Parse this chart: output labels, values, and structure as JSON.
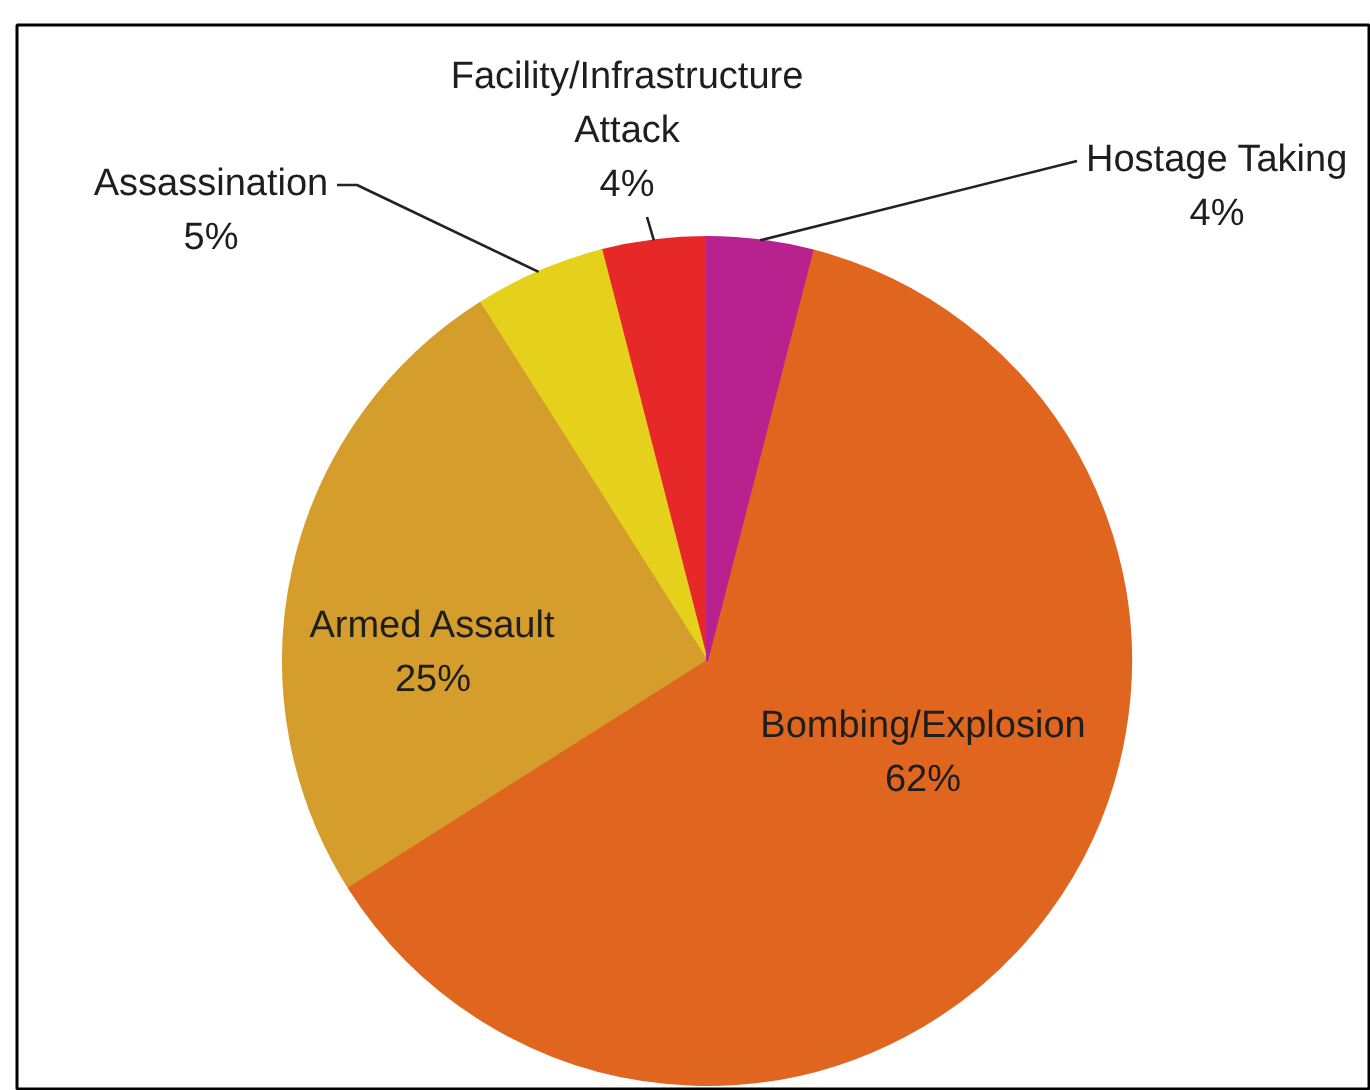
{
  "chart_data": {
    "type": "pie",
    "categories": [
      "Facility/Infrastructure Attack",
      "Assassination",
      "Armed Assault",
      "Bombing/Explosion",
      "Hostage Taking"
    ],
    "values": [
      4,
      5,
      25,
      62,
      4
    ],
    "colors": [
      "#e62828",
      "#e5d11c",
      "#d59d2b",
      "#e0661f",
      "#b8228f"
    ],
    "value_labels": [
      "4%",
      "5%",
      "25%",
      "62%",
      "4%"
    ]
  }
}
